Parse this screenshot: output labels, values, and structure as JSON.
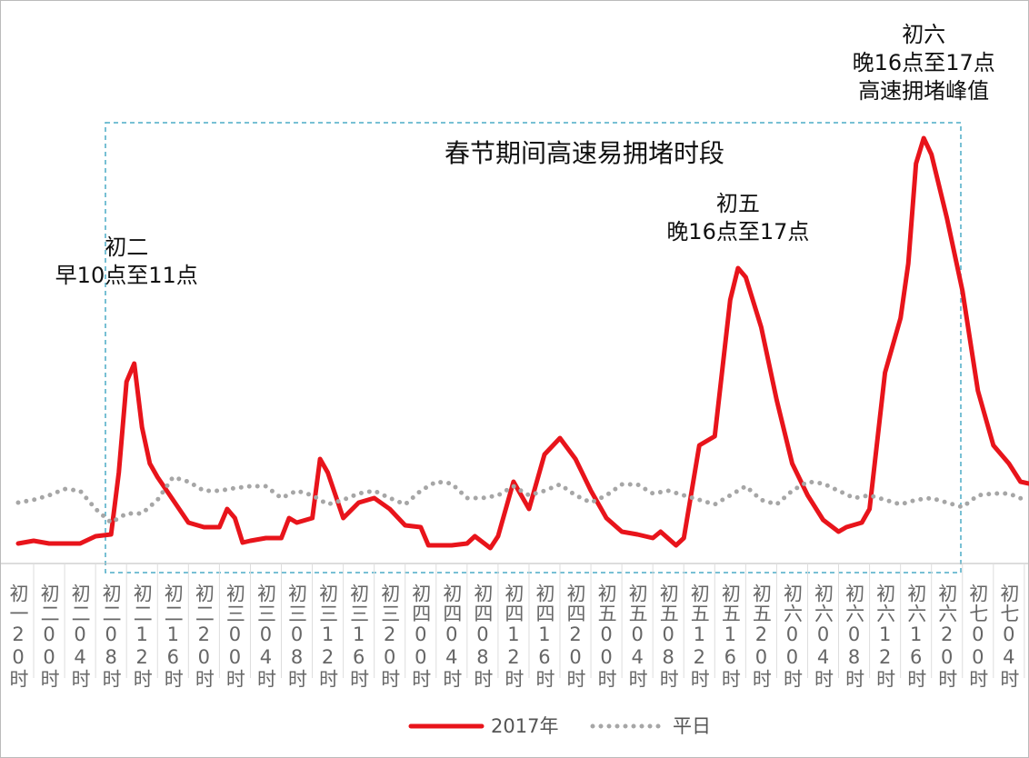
{
  "chart_data": {
    "type": "line",
    "box_title": "春节期间高速易拥堵时段",
    "annotations": [
      {
        "lines": [
          "初二",
          "早10点至11点"
        ],
        "x": 14
      },
      {
        "lines": [
          "初五",
          "晚16点至17点"
        ],
        "x": 93
      },
      {
        "lines": [
          "初六",
          "晚16点至17点",
          "高速拥堵峰值"
        ],
        "x": 117
      }
    ],
    "xlim": [
      -2.35,
      130.6
    ],
    "ylim": [
      0,
      620
    ],
    "xticks": [
      {
        "value": 0,
        "label": "初一20时"
      },
      {
        "value": 4,
        "label": "初二00时"
      },
      {
        "value": 8,
        "label": "初二04时"
      },
      {
        "value": 12,
        "label": "初二08时"
      },
      {
        "value": 16,
        "label": "初二12时"
      },
      {
        "value": 20,
        "label": "初二16时"
      },
      {
        "value": 24,
        "label": "初二20时"
      },
      {
        "value": 28,
        "label": "初三00时"
      },
      {
        "value": 32,
        "label": "初三04时"
      },
      {
        "value": 36,
        "label": "初三08时"
      },
      {
        "value": 40,
        "label": "初三12时"
      },
      {
        "value": 44,
        "label": "初三16时"
      },
      {
        "value": 48,
        "label": "初三20时"
      },
      {
        "value": 52,
        "label": "初四00时"
      },
      {
        "value": 56,
        "label": "初四04时"
      },
      {
        "value": 60,
        "label": "初四08时"
      },
      {
        "value": 64,
        "label": "初四12时"
      },
      {
        "value": 68,
        "label": "初四16时"
      },
      {
        "value": 72,
        "label": "初四20时"
      },
      {
        "value": 76,
        "label": "初五00时"
      },
      {
        "value": 80,
        "label": "初五04时"
      },
      {
        "value": 84,
        "label": "初五08时"
      },
      {
        "value": 88,
        "label": "初五12时"
      },
      {
        "value": 92,
        "label": "初五16时"
      },
      {
        "value": 96,
        "label": "初五20时"
      },
      {
        "value": 100,
        "label": "初六00时"
      },
      {
        "value": 104,
        "label": "初六04时"
      },
      {
        "value": 108,
        "label": "初六08时"
      },
      {
        "value": 112,
        "label": "初六12时"
      },
      {
        "value": 116,
        "label": "初六16时"
      },
      {
        "value": 120,
        "label": "初六20时"
      },
      {
        "value": 124,
        "label": "初七00时"
      },
      {
        "value": 128,
        "label": "初七04时"
      }
    ],
    "series": [
      {
        "name": "2017年",
        "color": "#e8141b",
        "style": "solid",
        "x": [
          0,
          2,
          4,
          6,
          8,
          10,
          12,
          13,
          14,
          15,
          16,
          17,
          18,
          20,
          22,
          24,
          26,
          27,
          28,
          29,
          30,
          32,
          34,
          35,
          36,
          38,
          39,
          40,
          42,
          44,
          46,
          48,
          50,
          52,
          53,
          56,
          58,
          59,
          61,
          62,
          64,
          66,
          68,
          70,
          72,
          74,
          76,
          78,
          80,
          82,
          83,
          85,
          86,
          88,
          90,
          92,
          93,
          94,
          96,
          98,
          100,
          102,
          104,
          106,
          107,
          109,
          110,
          112,
          114,
          115,
          116,
          117,
          118,
          120,
          122,
          124,
          126,
          128,
          129.5,
          130.6
        ],
        "values": [
          22,
          25,
          22,
          22,
          22,
          30,
          32,
          100,
          200,
          220,
          150,
          110,
          95,
          70,
          45,
          40,
          40,
          60,
          50,
          23,
          25,
          28,
          28,
          50,
          45,
          50,
          115,
          100,
          50,
          67,
          72,
          60,
          42,
          40,
          20,
          20,
          22,
          30,
          17,
          30,
          90,
          60,
          120,
          138,
          115,
          80,
          50,
          35,
          32,
          28,
          35,
          20,
          28,
          130,
          140,
          290,
          325,
          315,
          260,
          180,
          110,
          75,
          48,
          35,
          40,
          45,
          60,
          210,
          270,
          330,
          440,
          468,
          450,
          380,
          300,
          190,
          130,
          110,
          90,
          88
        ]
      },
      {
        "name": "平日",
        "color": "#a6a6a6",
        "style": "dotted",
        "x": [
          0,
          2,
          4,
          6,
          8,
          10,
          12,
          14,
          16,
          18,
          20,
          22,
          24,
          26,
          28,
          30,
          32,
          34,
          36,
          38,
          40,
          42,
          44,
          46,
          48,
          50,
          52,
          54,
          56,
          58,
          60,
          62,
          64,
          66,
          68,
          70,
          72,
          74,
          76,
          78,
          80,
          82,
          84,
          86,
          88,
          90,
          92,
          94,
          96,
          98,
          100,
          102,
          104,
          106,
          108,
          110,
          112,
          114,
          116,
          118,
          120,
          122,
          124,
          126,
          128,
          130
        ],
        "values": [
          67,
          70,
          75,
          82,
          80,
          60,
          45,
          55,
          55,
          70,
          95,
          90,
          80,
          80,
          83,
          85,
          85,
          72,
          80,
          75,
          65,
          70,
          77,
          80,
          72,
          65,
          80,
          90,
          88,
          72,
          72,
          75,
          85,
          75,
          80,
          87,
          75,
          67,
          75,
          87,
          87,
          77,
          80,
          75,
          70,
          65,
          75,
          85,
          70,
          65,
          80,
          90,
          88,
          80,
          72,
          75,
          70,
          65,
          70,
          72,
          67,
          62,
          75,
          77,
          77,
          70
        ]
      }
    ]
  }
}
